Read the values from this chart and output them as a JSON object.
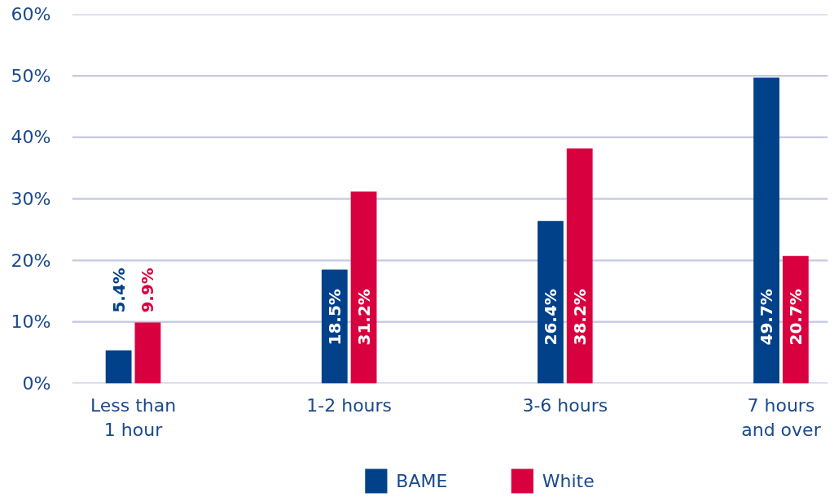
{
  "chart_data": {
    "type": "bar",
    "categories": [
      "Less than 1 hour",
      "1-2 hours",
      "3-6 hours",
      "7 hours and over"
    ],
    "series": [
      {
        "name": "BAME",
        "color": "#00418a",
        "values": [
          5.4,
          18.5,
          26.4,
          49.7
        ],
        "value_labels": [
          "5.4%",
          "18.5%",
          "26.4%",
          "49.7%"
        ]
      },
      {
        "name": "White",
        "color": "#d9003f",
        "values": [
          9.9,
          31.2,
          38.2,
          20.7
        ],
        "value_labels": [
          "9.9%",
          "31.2%",
          "38.2%",
          "20.7%"
        ]
      }
    ],
    "ylim": [
      0,
      60
    ],
    "yticks": [
      {
        "value": 0,
        "label": "0%"
      },
      {
        "value": 10,
        "label": "10%"
      },
      {
        "value": 20,
        "label": "20%"
      },
      {
        "value": 30,
        "label": "30%"
      },
      {
        "value": 40,
        "label": "40%"
      },
      {
        "value": 50,
        "label": "50%"
      },
      {
        "value": 60,
        "label": "60%"
      }
    ],
    "grid": "y",
    "legend": "bottom"
  }
}
